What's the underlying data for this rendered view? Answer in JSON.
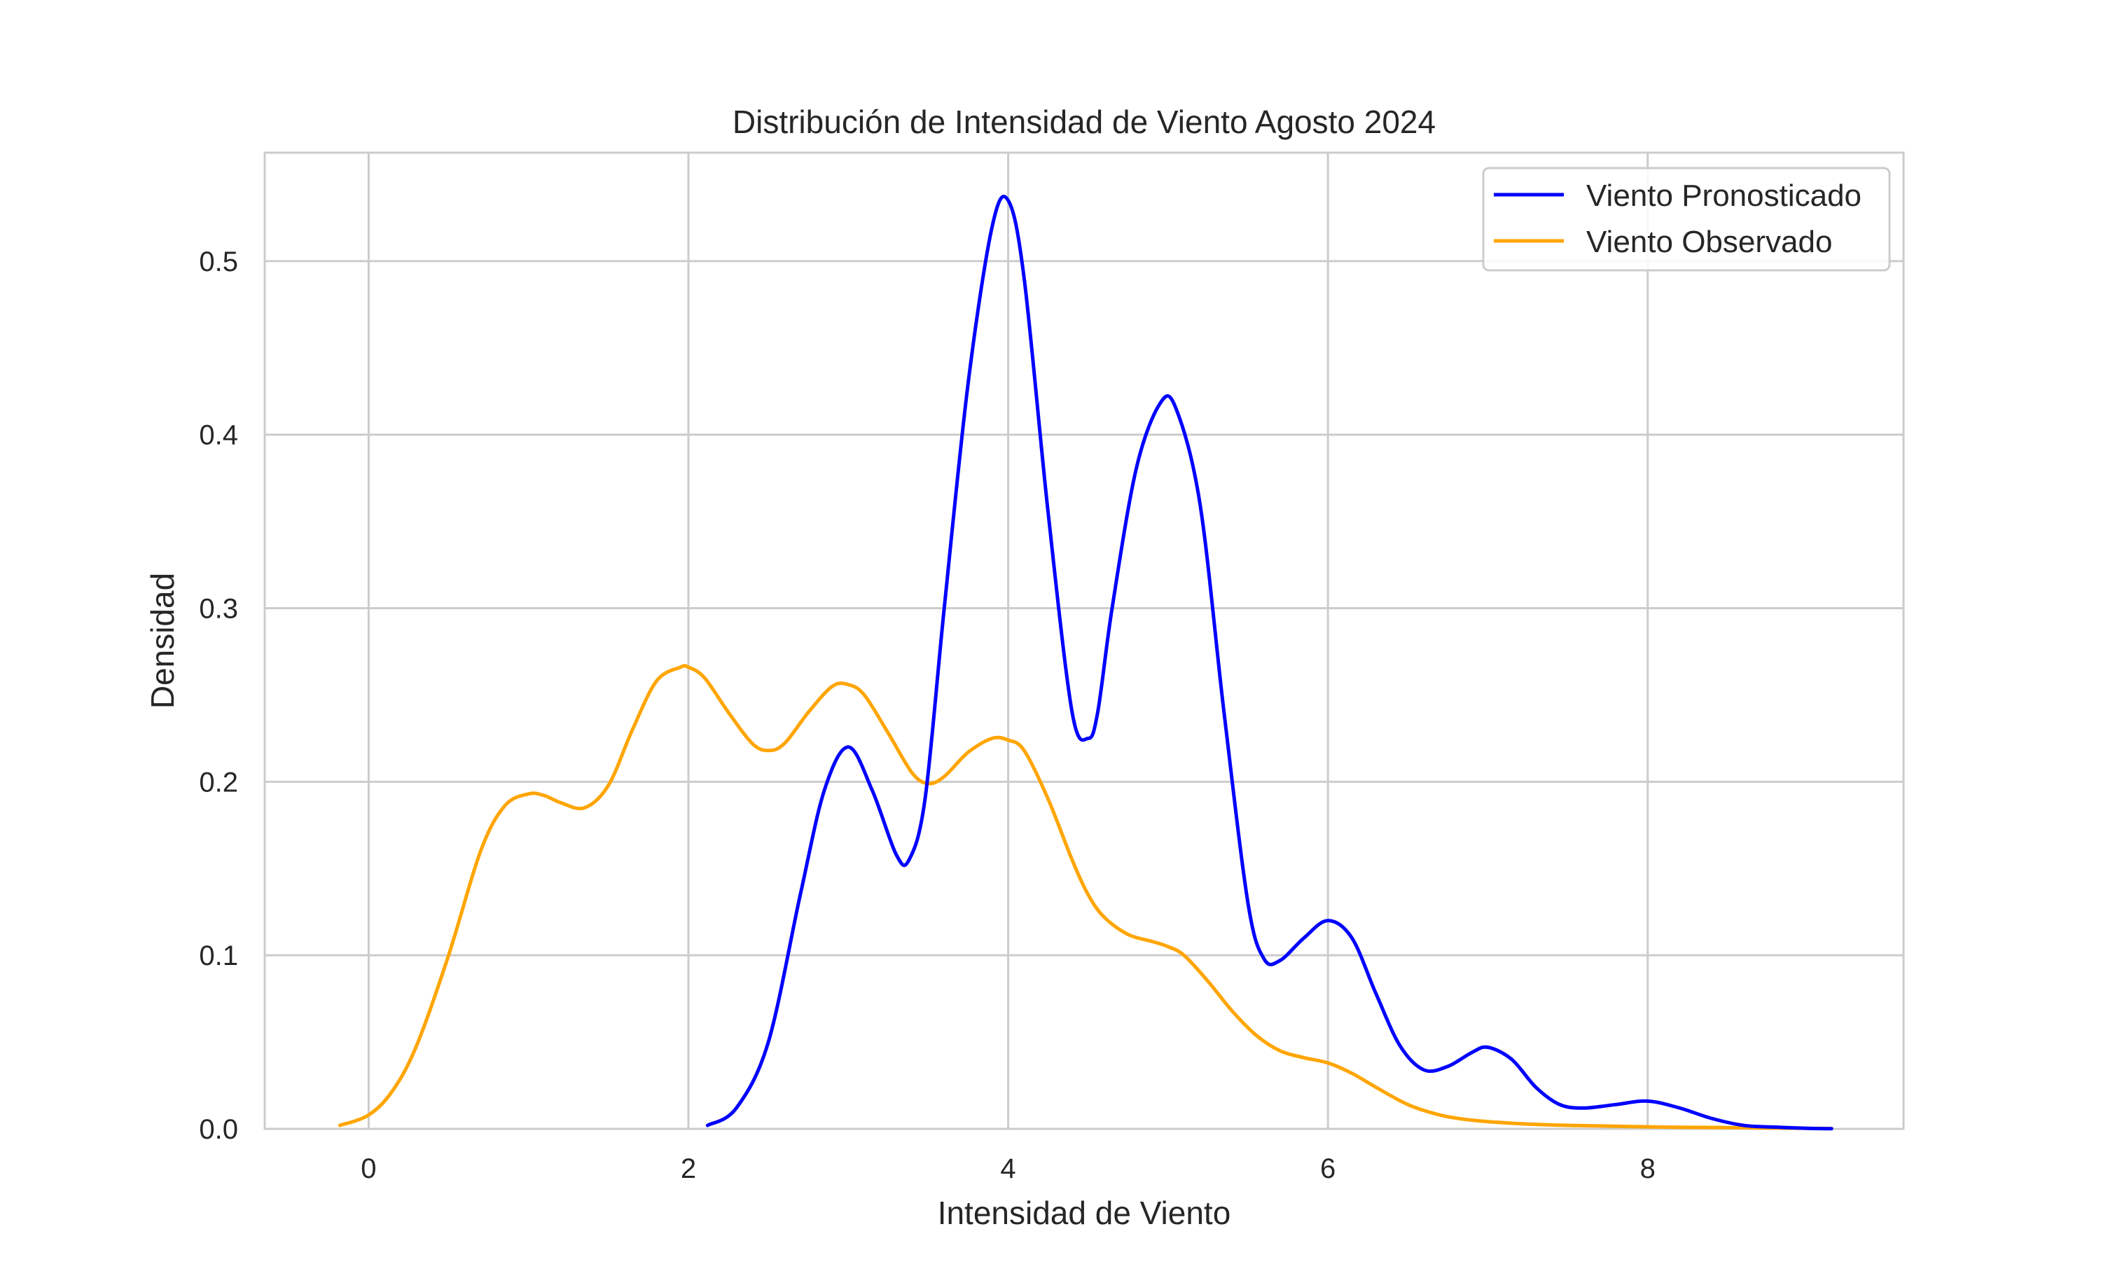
{
  "chart_data": {
    "type": "line",
    "title": "Distribución de Intensidad de Viento Agosto 2024",
    "xlabel": "Intensidad de Viento",
    "ylabel": "Densidad",
    "xlim": [
      -0.65,
      9.6
    ],
    "ylim": [
      0,
      0.5625
    ],
    "xticks": [
      0,
      2,
      4,
      6,
      8
    ],
    "yticks": [
      0.0,
      0.1,
      0.2,
      0.3,
      0.4,
      0.5
    ],
    "xtick_labels": [
      "0",
      "2",
      "4",
      "6",
      "8"
    ],
    "ytick_labels": [
      "0.0",
      "0.1",
      "0.2",
      "0.3",
      "0.4",
      "0.5"
    ],
    "grid": true,
    "legend_position": "top-right",
    "series": [
      {
        "name": "Viento Pronosticado",
        "color": "#0000ff",
        "x": [
          2.12,
          2.3,
          2.5,
          2.7,
          2.85,
          3.0,
          3.15,
          3.3,
          3.38,
          3.48,
          3.6,
          3.75,
          3.9,
          4.0,
          4.1,
          4.25,
          4.4,
          4.5,
          4.56,
          4.65,
          4.8,
          4.95,
          5.05,
          5.2,
          5.35,
          5.5,
          5.6,
          5.7,
          5.85,
          6.0,
          6.15,
          6.3,
          6.45,
          6.6,
          6.75,
          6.9,
          7.0,
          7.15,
          7.3,
          7.45,
          7.6,
          7.8,
          8.0,
          8.2,
          8.4,
          8.6,
          8.8,
          9.0,
          9.15
        ],
        "y": [
          0.002,
          0.012,
          0.05,
          0.135,
          0.195,
          0.22,
          0.195,
          0.158,
          0.155,
          0.19,
          0.3,
          0.43,
          0.52,
          0.535,
          0.49,
          0.355,
          0.24,
          0.225,
          0.24,
          0.3,
          0.38,
          0.418,
          0.415,
          0.36,
          0.24,
          0.13,
          0.098,
          0.097,
          0.11,
          0.12,
          0.11,
          0.078,
          0.048,
          0.034,
          0.036,
          0.044,
          0.047,
          0.04,
          0.024,
          0.014,
          0.012,
          0.014,
          0.016,
          0.012,
          0.006,
          0.002,
          0.001,
          0.0003,
          0.0001
        ]
      },
      {
        "name": "Viento Observado",
        "color": "#ffa500",
        "x": [
          -0.18,
          0.0,
          0.15,
          0.3,
          0.5,
          0.7,
          0.85,
          1.0,
          1.1,
          1.2,
          1.35,
          1.5,
          1.65,
          1.8,
          1.95,
          2.0,
          2.1,
          2.25,
          2.4,
          2.5,
          2.6,
          2.75,
          2.9,
          3.0,
          3.1,
          3.25,
          3.4,
          3.5,
          3.6,
          3.75,
          3.9,
          4.0,
          4.1,
          4.25,
          4.4,
          4.5,
          4.6,
          4.75,
          4.9,
          5.0,
          5.1,
          5.25,
          5.4,
          5.55,
          5.7,
          5.85,
          6.0,
          6.15,
          6.3,
          6.5,
          6.7,
          6.9,
          7.2,
          7.5,
          7.8,
          8.1,
          8.4,
          8.7,
          9.0,
          9.15
        ],
        "y": [
          0.002,
          0.008,
          0.022,
          0.048,
          0.1,
          0.16,
          0.186,
          0.193,
          0.192,
          0.188,
          0.185,
          0.198,
          0.23,
          0.258,
          0.266,
          0.266,
          0.26,
          0.24,
          0.222,
          0.218,
          0.222,
          0.24,
          0.255,
          0.256,
          0.25,
          0.228,
          0.205,
          0.199,
          0.203,
          0.217,
          0.225,
          0.224,
          0.218,
          0.19,
          0.155,
          0.135,
          0.122,
          0.112,
          0.108,
          0.105,
          0.1,
          0.085,
          0.068,
          0.054,
          0.045,
          0.041,
          0.038,
          0.032,
          0.024,
          0.014,
          0.008,
          0.005,
          0.003,
          0.002,
          0.0015,
          0.001,
          0.0008,
          0.0005,
          0.0003,
          0.0002
        ]
      }
    ]
  }
}
